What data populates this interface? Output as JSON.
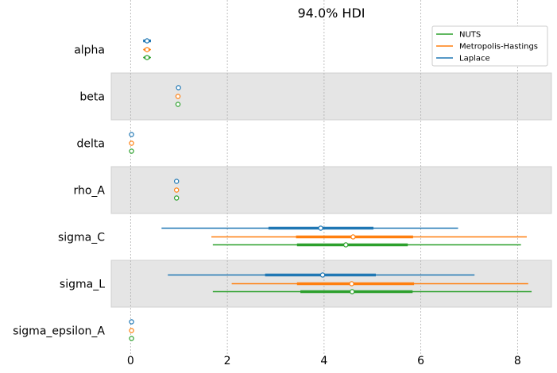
{
  "chart_data": {
    "type": "forest",
    "title": "94.0% HDI",
    "xlim": [
      -0.4,
      8.7
    ],
    "xticks": [
      0,
      2,
      4,
      6,
      8
    ],
    "xtick_labels": [
      "0",
      "2",
      "4",
      "6",
      "8"
    ],
    "grid": "vertical dotted",
    "legend_position": "top-right",
    "parameters": [
      "alpha",
      "beta",
      "delta",
      "rho_A",
      "sigma_C",
      "sigma_L",
      "sigma_epsilon_A"
    ],
    "series": [
      {
        "name": "Laplace",
        "color": "#1f77b4",
        "estimates": [
          {
            "param": "alpha",
            "median": 0.34,
            "iqr": [
              0.26,
              0.42
            ],
            "hdi": [
              0.26,
              0.42
            ]
          },
          {
            "param": "beta",
            "median": 0.99,
            "iqr": [
              0.99,
              0.99
            ],
            "hdi": [
              0.99,
              0.99
            ]
          },
          {
            "param": "delta",
            "median": 0.02,
            "iqr": [
              0.02,
              0.02
            ],
            "hdi": [
              0.02,
              0.02
            ]
          },
          {
            "param": "rho_A",
            "median": 0.95,
            "iqr": [
              0.95,
              0.95
            ],
            "hdi": [
              0.95,
              0.95
            ]
          },
          {
            "param": "sigma_C",
            "median": 3.93,
            "iqr": [
              2.85,
              5.02
            ],
            "hdi": [
              0.64,
              6.77
            ]
          },
          {
            "param": "sigma_L",
            "median": 3.97,
            "iqr": [
              2.78,
              5.07
            ],
            "hdi": [
              0.77,
              7.11
            ]
          },
          {
            "param": "sigma_epsilon_A",
            "median": 0.02,
            "iqr": [
              0.02,
              0.02
            ],
            "hdi": [
              0.02,
              0.02
            ]
          }
        ]
      },
      {
        "name": "Metropolis-Hastings",
        "color": "#ff7f0e",
        "estimates": [
          {
            "param": "alpha",
            "median": 0.34,
            "iqr": [
              0.28,
              0.4
            ],
            "hdi": [
              0.26,
              0.42
            ]
          },
          {
            "param": "beta",
            "median": 0.98,
            "iqr": [
              0.98,
              0.98
            ],
            "hdi": [
              0.98,
              0.98
            ]
          },
          {
            "param": "delta",
            "median": 0.02,
            "iqr": [
              0.02,
              0.02
            ],
            "hdi": [
              0.02,
              0.02
            ]
          },
          {
            "param": "rho_A",
            "median": 0.95,
            "iqr": [
              0.95,
              0.95
            ],
            "hdi": [
              0.95,
              0.95
            ]
          },
          {
            "param": "sigma_C",
            "median": 4.6,
            "iqr": [
              3.42,
              5.84
            ],
            "hdi": [
              1.67,
              8.19
            ]
          },
          {
            "param": "sigma_L",
            "median": 4.57,
            "iqr": [
              3.44,
              5.86
            ],
            "hdi": [
              2.09,
              8.22
            ]
          },
          {
            "param": "sigma_epsilon_A",
            "median": 0.02,
            "iqr": [
              0.02,
              0.02
            ],
            "hdi": [
              0.02,
              0.02
            ]
          }
        ]
      },
      {
        "name": "NUTS",
        "color": "#2ca02c",
        "estimates": [
          {
            "param": "alpha",
            "median": 0.34,
            "iqr": [
              0.28,
              0.4
            ],
            "hdi": [
              0.26,
              0.42
            ]
          },
          {
            "param": "beta",
            "median": 0.98,
            "iqr": [
              0.98,
              0.98
            ],
            "hdi": [
              0.98,
              0.98
            ]
          },
          {
            "param": "delta",
            "median": 0.02,
            "iqr": [
              0.02,
              0.02
            ],
            "hdi": [
              0.02,
              0.02
            ]
          },
          {
            "param": "rho_A",
            "median": 0.95,
            "iqr": [
              0.95,
              0.95
            ],
            "hdi": [
              0.95,
              0.95
            ]
          },
          {
            "param": "sigma_C",
            "median": 4.45,
            "iqr": [
              3.44,
              5.73
            ],
            "hdi": [
              1.7,
              8.07
            ]
          },
          {
            "param": "sigma_L",
            "median": 4.58,
            "iqr": [
              3.51,
              5.83
            ],
            "hdi": [
              1.7,
              8.29
            ]
          },
          {
            "param": "sigma_epsilon_A",
            "median": 0.02,
            "iqr": [
              0.02,
              0.02
            ],
            "hdi": [
              0.02,
              0.02
            ]
          }
        ]
      }
    ],
    "legend": [
      "NUTS",
      "Metropolis-Hastings",
      "Laplace"
    ]
  }
}
